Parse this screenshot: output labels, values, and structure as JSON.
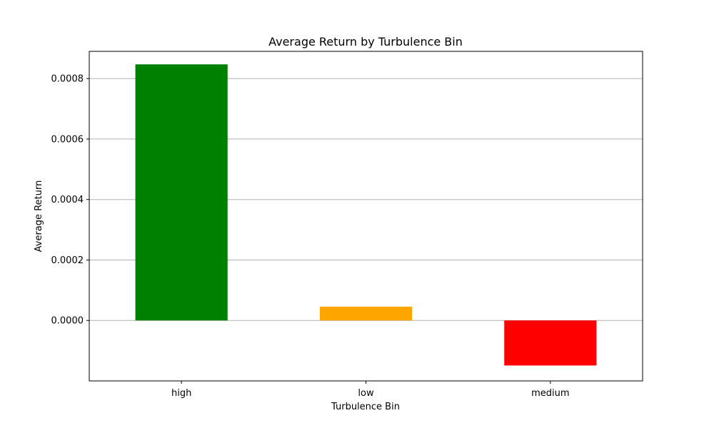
{
  "chart_data": {
    "type": "bar",
    "title": "Average Return by Turbulence Bin",
    "xlabel": "Turbulence Bin",
    "ylabel": "Average Return",
    "categories": [
      "high",
      "low",
      "medium"
    ],
    "values": [
      0.000847,
      4.56e-05,
      -0.000149
    ],
    "colors": [
      "#008000",
      "#ffa500",
      "#ff0000"
    ],
    "ylim": [
      -0.0002,
      0.00089
    ],
    "yticks": [
      0.0,
      0.0002,
      0.0004,
      0.0006,
      0.0008
    ],
    "ytick_labels": [
      "0.0000",
      "0.0002",
      "0.0004",
      "0.0006",
      "0.0008"
    ],
    "grid": "y-axis",
    "legend": "none"
  }
}
